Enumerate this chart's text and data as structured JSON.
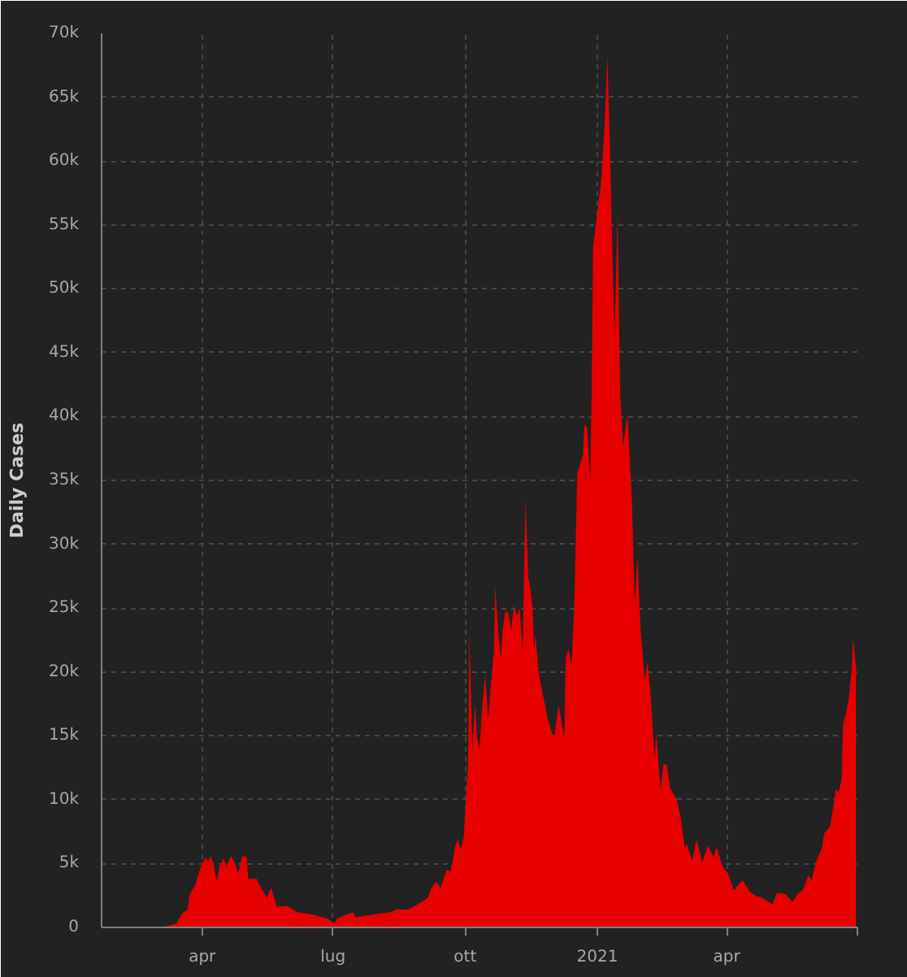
{
  "chart_data": {
    "type": "area",
    "ylabel": "Daily Cases",
    "color": "#e60000",
    "x": [
      "2020-02-01",
      "2020-03-02",
      "2020-03-07",
      "2020-03-14",
      "2020-03-18",
      "2020-03-22",
      "2020-03-23",
      "2020-03-27",
      "2020-03-30",
      "2020-04-01",
      "2020-04-04",
      "2020-04-05",
      "2020-04-07",
      "2020-04-09",
      "2020-04-11",
      "2020-04-13",
      "2020-04-16",
      "2020-04-18",
      "2020-04-21",
      "2020-04-24",
      "2020-04-26",
      "2020-04-29",
      "2020-05-02",
      "2020-05-03",
      "2020-05-09",
      "2020-05-11",
      "2020-05-16",
      "2020-05-19",
      "2020-05-23",
      "2020-05-30",
      "2020-06-06",
      "2020-06-17",
      "2020-06-27",
      "2020-07-02",
      "2020-07-04",
      "2020-07-15",
      "2020-07-17",
      "2020-07-28",
      "2020-08-10",
      "2020-08-14",
      "2020-08-22",
      "2020-08-29",
      "2020-09-05",
      "2020-09-07",
      "2020-09-11",
      "2020-09-14",
      "2020-09-18",
      "2020-09-21",
      "2020-09-24",
      "2020-09-26",
      "2020-09-28",
      "2020-09-30",
      "2020-10-03",
      "2020-10-04",
      "2020-10-06",
      "2020-10-08",
      "2020-10-09",
      "2020-10-11",
      "2020-10-13",
      "2020-10-15",
      "2020-10-17",
      "2020-10-19",
      "2020-10-21",
      "2020-10-22",
      "2020-10-24",
      "2020-10-26",
      "2020-10-27",
      "2020-10-29",
      "2020-10-31",
      "2020-11-02",
      "2020-11-04",
      "2020-11-06",
      "2020-11-08",
      "2020-11-10",
      "2020-11-12",
      "2020-11-14",
      "2020-11-15",
      "2020-11-17",
      "2020-11-18",
      "2020-11-19",
      "2020-11-21",
      "2020-11-24",
      "2020-11-28",
      "2020-11-30",
      "2020-12-02",
      "2020-12-05",
      "2020-12-09",
      "2020-12-10",
      "2020-12-12",
      "2020-12-14",
      "2020-12-16",
      "2020-12-18",
      "2020-12-22",
      "2020-12-23",
      "2020-12-25",
      "2020-12-27",
      "2020-12-28",
      "2020-12-29",
      "2021-01-01",
      "2021-01-03",
      "2021-01-04",
      "2021-01-06",
      "2021-01-08",
      "2021-01-10",
      "2021-01-11",
      "2021-01-13",
      "2021-01-15",
      "2021-01-17",
      "2021-01-19",
      "2021-01-22",
      "2021-01-25",
      "2021-01-27",
      "2021-01-29",
      "2021-01-31",
      "2021-02-03",
      "2021-02-05",
      "2021-02-07",
      "2021-02-10",
      "2021-02-11",
      "2021-02-14",
      "2021-02-16",
      "2021-02-18",
      "2021-02-21",
      "2021-02-25",
      "2021-02-28",
      "2021-03-03",
      "2021-03-04",
      "2021-03-08",
      "2021-03-11",
      "2021-03-15",
      "2021-03-19",
      "2021-03-23",
      "2021-03-25",
      "2021-03-29",
      "2021-04-02",
      "2021-04-06",
      "2021-04-12",
      "2021-04-17",
      "2021-04-21",
      "2021-04-26",
      "2021-05-03",
      "2021-05-06",
      "2021-05-12",
      "2021-05-17",
      "2021-05-21",
      "2021-05-24",
      "2021-05-28",
      "2021-05-30",
      "2021-06-03",
      "2021-06-06",
      "2021-06-08",
      "2021-06-12",
      "2021-06-16",
      "2021-06-18",
      "2021-06-20",
      "2021-06-21",
      "2021-06-23",
      "2021-06-25",
      "2021-06-27",
      "2021-06-28",
      "2021-06-30"
    ],
    "values": [
      0,
      0,
      100,
      300,
      1100,
      1400,
      2500,
      3300,
      4400,
      5000,
      5500,
      5100,
      5600,
      5000,
      3600,
      4700,
      5400,
      4800,
      5600,
      5000,
      4200,
      5600,
      5500,
      3800,
      3800,
      3300,
      2300,
      3100,
      1600,
      1700,
      1200,
      1000,
      700,
      300,
      700,
      1200,
      800,
      1000,
      1200,
      1400,
      1400,
      1800,
      2300,
      3000,
      3600,
      3100,
      4500,
      4400,
      6300,
      6900,
      6100,
      7100,
      12900,
      23000,
      14000,
      17600,
      15200,
      14000,
      17400,
      19800,
      16300,
      19100,
      21600,
      26700,
      23100,
      21000,
      23200,
      24800,
      24600,
      23300,
      25200,
      24400,
      25000,
      21600,
      33600,
      27300,
      26900,
      25000,
      21500,
      23000,
      20100,
      18300,
      16100,
      15400,
      14800,
      17400,
      14900,
      21100,
      21800,
      20500,
      25400,
      35500,
      37000,
      39400,
      39100,
      34900,
      41500,
      53200,
      56000,
      57800,
      58900,
      62600,
      68200,
      60100,
      55100,
      46300,
      55800,
      41500,
      37700,
      40200,
      33700,
      25400,
      29000,
      23500,
      19400,
      20800,
      18300,
      13200,
      15200,
      10800,
      12700,
      12800,
      10800,
      10100,
      8600,
      6100,
      6600,
      5200,
      6900,
      5100,
      6400,
      5500,
      6300,
      4800,
      4200,
      2900,
      3700,
      2800,
      2500,
      2300,
      1800,
      2700,
      2600,
      2000,
      2700,
      2900,
      4100,
      3700,
      5400,
      6100,
      7400,
      7900,
      10800,
      10600,
      11600,
      15900,
      16700,
      18000,
      20100,
      22700,
      20300
    ],
    "xlim": [
      "2020-01-22",
      "2021-07-01"
    ],
    "xticks": [
      {
        "value": "2020-04-01",
        "label": "apr"
      },
      {
        "value": "2020-07-01",
        "label": "lug"
      },
      {
        "value": "2020-10-01",
        "label": "ott"
      },
      {
        "value": "2021-01-01",
        "label": "2021"
      },
      {
        "value": "2021-04-01",
        "label": "apr"
      },
      {
        "value": "2021-07-01",
        "label": null
      }
    ],
    "ylim": [
      0,
      70000
    ],
    "yticks": [
      0,
      {
        "value": 5000,
        "label": "5k"
      },
      {
        "value": 10000,
        "label": "10k"
      },
      {
        "value": 15000,
        "label": "15k"
      },
      {
        "value": 20000,
        "label": "20k"
      },
      {
        "value": 25000,
        "label": "25k"
      },
      {
        "value": 30000,
        "label": "30k"
      },
      {
        "value": 35000,
        "label": "35k"
      },
      {
        "value": 40000,
        "label": "40k"
      },
      {
        "value": 45000,
        "label": "45k"
      },
      {
        "value": 50000,
        "label": "50k"
      },
      {
        "value": 55000,
        "label": "55k"
      },
      {
        "value": 60000,
        "label": "60k"
      },
      {
        "value": 65000,
        "label": "65k"
      },
      {
        "value": 70000,
        "label": "70k"
      }
    ],
    "grid": true
  }
}
